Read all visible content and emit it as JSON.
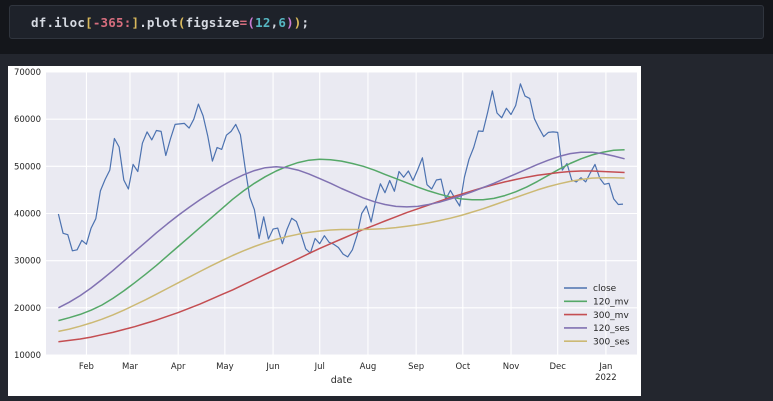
{
  "code_cell": {
    "full_text": "df.iloc[-365:].plot(figsize=(12,6));",
    "tokens": [
      {
        "text": "df.iloc",
        "color": "#d6dae2"
      },
      {
        "text": "[",
        "color": "#d9b95c"
      },
      {
        "text": "-365",
        "color": "#d76e7e"
      },
      {
        "text": ":",
        "color": "#d76e7e"
      },
      {
        "text": "]",
        "color": "#d9b95c"
      },
      {
        "text": ".plot",
        "color": "#d6dae2"
      },
      {
        "text": "(",
        "color": "#d9b95c"
      },
      {
        "text": "figsize",
        "color": "#d6dae2"
      },
      {
        "text": "=",
        "color": "#d76e7e"
      },
      {
        "text": "(",
        "color": "#c97bd3"
      },
      {
        "text": "12",
        "color": "#56b6c2"
      },
      {
        "text": ",",
        "color": "#d6dae2"
      },
      {
        "text": "6",
        "color": "#56b6c2"
      },
      {
        "text": ")",
        "color": "#c97bd3"
      },
      {
        "text": ")",
        "color": "#d9b95c"
      },
      {
        "text": ";",
        "color": "#d6dae2"
      }
    ]
  },
  "chart_data": {
    "type": "line",
    "title": "",
    "xlabel": "date",
    "ylabel": "",
    "plot_bg": "#eaeaf2",
    "grid_color": "#ffffff",
    "tick_color": "#262626",
    "ylim": [
      10000,
      70000
    ],
    "yticks": [
      10000,
      20000,
      30000,
      40000,
      50000,
      60000,
      70000
    ],
    "x_span_days": 364,
    "x_margin_days": 8,
    "x_start_label": "2021-01-14",
    "xticks": [
      {
        "label": "Feb",
        "day": 18
      },
      {
        "label": "Mar",
        "day": 46
      },
      {
        "label": "Apr",
        "day": 77
      },
      {
        "label": "May",
        "day": 107
      },
      {
        "label": "Jun",
        "day": 138
      },
      {
        "label": "Jul",
        "day": 168
      },
      {
        "label": "Aug",
        "day": 199
      },
      {
        "label": "Sep",
        "day": 230
      },
      {
        "label": "Oct",
        "day": 260
      },
      {
        "label": "Nov",
        "day": 291
      },
      {
        "label": "Dec",
        "day": 321
      },
      {
        "label": "Jan",
        "day": 352,
        "sublabel": "2022"
      }
    ],
    "legend_position": "lower right",
    "grid": true,
    "series": [
      {
        "name": "close",
        "color": "#4C72B0",
        "width": 1.2,
        "step_days": 3,
        "values": [
          39900,
          35800,
          35500,
          32100,
          32300,
          34300,
          33500,
          36900,
          38900,
          44800,
          47200,
          49200,
          55900,
          54100,
          47100,
          45200,
          50400,
          48900,
          54900,
          57300,
          55600,
          57600,
          57400,
          52300,
          55800,
          58900,
          59000,
          59100,
          58100,
          60000,
          63200,
          60700,
          56500,
          51100,
          54000,
          53600,
          56600,
          57400,
          58900,
          56700,
          49700,
          43500,
          40800,
          34700,
          39300,
          34600,
          36700,
          36900,
          33600,
          36700,
          39000,
          38300,
          35600,
          32500,
          31600,
          34700,
          33600,
          35300,
          33900,
          33500,
          32800,
          31400,
          30800,
          32300,
          35400,
          40000,
          41600,
          38200,
          42800,
          46300,
          44400,
          47000,
          44700,
          48900,
          47700,
          49000,
          47000,
          49300,
          51800,
          46100,
          45200,
          47100,
          47300,
          43000,
          44900,
          43200,
          41600,
          47700,
          51500,
          54000,
          57500,
          57400,
          61500,
          66000,
          61300,
          60300,
          62300,
          61000,
          62900,
          67500,
          64900,
          64400,
          60100,
          58100,
          56300,
          57200,
          57300,
          57200,
          49200,
          50600,
          47100,
          46700,
          47600,
          46700,
          48600,
          50400,
          47500,
          46200,
          46400,
          43100,
          41900,
          42000
        ]
      },
      {
        "name": "120_mv",
        "color": "#55A868",
        "width": 1.5,
        "step_days": 7,
        "values": [
          17300,
          17900,
          18600,
          19500,
          20600,
          22000,
          23600,
          25300,
          27100,
          29000,
          31000,
          33000,
          35000,
          37000,
          39000,
          41000,
          43000,
          44800,
          46400,
          47800,
          49000,
          50000,
          50800,
          51300,
          51500,
          51400,
          51100,
          50600,
          50000,
          49200,
          48300,
          47400,
          46500,
          45600,
          44800,
          44100,
          43500,
          43100,
          42900,
          42900,
          43200,
          43800,
          44600,
          45600,
          46800,
          48100,
          49400,
          50600,
          51600,
          52400,
          53000,
          53400,
          53500
        ]
      },
      {
        "name": "300_mv",
        "color": "#C44E52",
        "width": 1.5,
        "step_days": 7,
        "values": [
          12800,
          13100,
          13400,
          13800,
          14300,
          14800,
          15400,
          16000,
          16700,
          17400,
          18200,
          19000,
          19900,
          20800,
          21800,
          22800,
          23800,
          24900,
          26000,
          27100,
          28200,
          29300,
          30400,
          31500,
          32600,
          33600,
          34600,
          35600,
          36600,
          37500,
          38400,
          39300,
          40200,
          41000,
          41800,
          42600,
          43400,
          44100,
          44800,
          45500,
          46100,
          46700,
          47200,
          47700,
          48100,
          48400,
          48700,
          48900,
          49000,
          49000,
          48900,
          48800,
          48700
        ]
      },
      {
        "name": "120_ses",
        "color": "#8172B2",
        "width": 1.5,
        "step_days": 7,
        "values": [
          20000,
          21200,
          22600,
          24200,
          26000,
          27900,
          29900,
          31900,
          33900,
          35900,
          37800,
          39600,
          41300,
          42900,
          44400,
          45800,
          47100,
          48200,
          49100,
          49700,
          49900,
          49700,
          49200,
          48400,
          47400,
          46400,
          45300,
          44300,
          43300,
          42500,
          41900,
          41500,
          41400,
          41500,
          41900,
          42400,
          43100,
          43800,
          44600,
          45500,
          46400,
          47400,
          48400,
          49400,
          50400,
          51300,
          52100,
          52700,
          53000,
          53000,
          52700,
          52200,
          51600
        ]
      },
      {
        "name": "300_ses",
        "color": "#CCB974",
        "width": 1.5,
        "step_days": 7,
        "values": [
          15000,
          15500,
          16100,
          16800,
          17600,
          18500,
          19500,
          20600,
          21700,
          22900,
          24100,
          25300,
          26500,
          27700,
          28900,
          30000,
          31100,
          32100,
          33000,
          33800,
          34500,
          35100,
          35600,
          36000,
          36300,
          36500,
          36600,
          36600,
          36600,
          36700,
          36800,
          37000,
          37300,
          37600,
          38000,
          38500,
          39000,
          39600,
          40300,
          41000,
          41800,
          42600,
          43400,
          44200,
          45000,
          45700,
          46300,
          46800,
          47200,
          47500,
          47600,
          47600,
          47500
        ]
      }
    ],
    "legend": [
      "close",
      "120_mv",
      "300_mv",
      "120_ses",
      "300_ses"
    ]
  }
}
